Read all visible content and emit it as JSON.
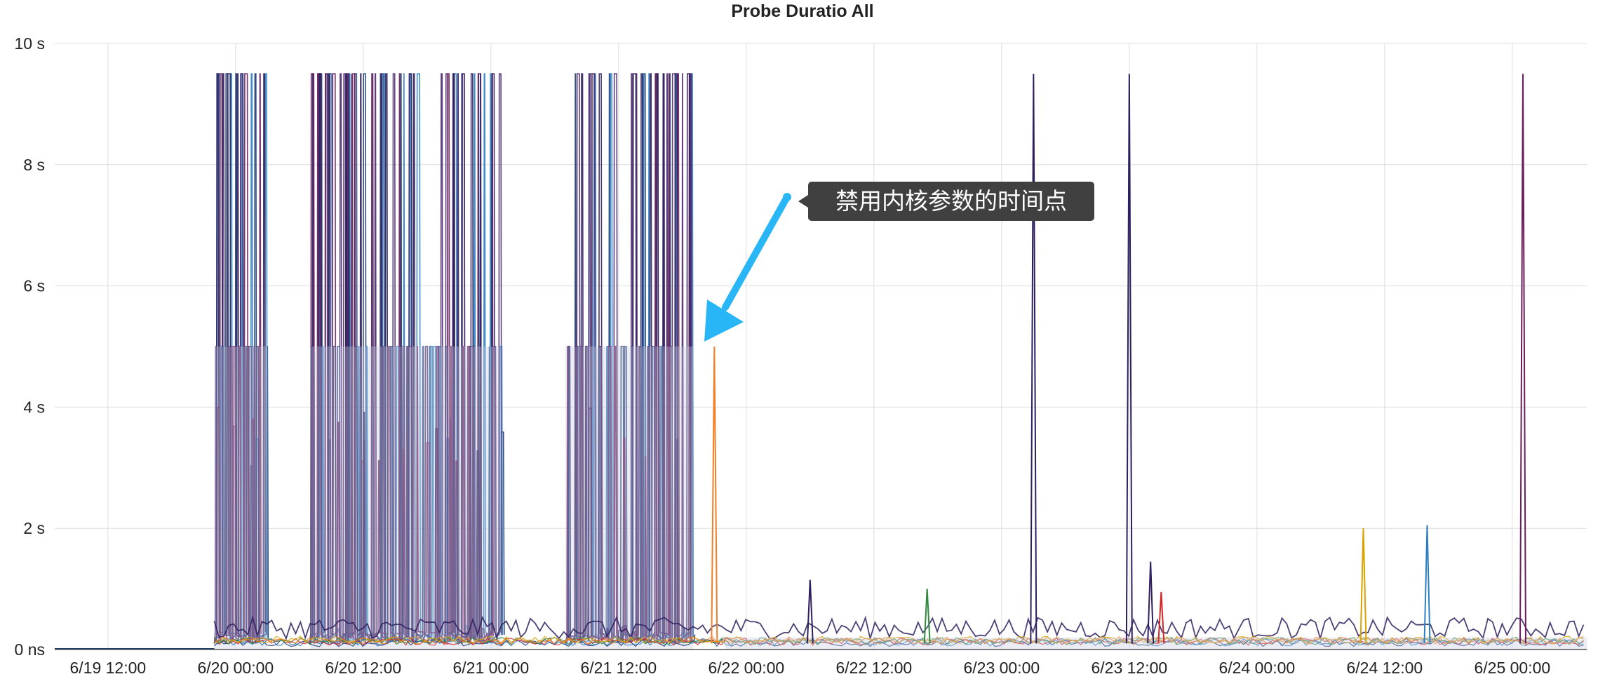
{
  "chart_data": {
    "type": "line",
    "title": "Probe Duratio All",
    "xlabel": "",
    "ylabel": "",
    "x_ticks": [
      "6/19 12:00",
      "6/20 00:00",
      "6/20 12:00",
      "6/21 00:00",
      "6/21 12:00",
      "6/22 00:00",
      "6/22 12:00",
      "6/23 00:00",
      "6/23 12:00",
      "6/24 00:00",
      "6/24 12:00",
      "6/25 00:00"
    ],
    "x_range": [
      "6/19 07:00",
      "6/25 07:00"
    ],
    "y_ticks": [
      "0 ns",
      "2 s",
      "4 s",
      "6 s",
      "8 s",
      "10 s"
    ],
    "ylim": [
      0,
      10
    ],
    "y_unit": "s",
    "grid": true,
    "legend": "none",
    "colors": [
      "#1f3b73",
      "#2d7fc1",
      "#4b2a6e",
      "#6a1f5c",
      "#2e1f5e",
      "#f07f29",
      "#2f8a3e",
      "#d62728",
      "#7f1d1d",
      "#d8a200",
      "#8a8fb5"
    ],
    "notable_spikes": [
      {
        "time": "6/23 03:00",
        "value": 9.5
      },
      {
        "time": "6/23 12:00",
        "value": 9.5
      },
      {
        "time": "6/23 14:00",
        "value": 1.45
      },
      {
        "time": "6/24 10:00",
        "value": 2.0
      },
      {
        "time": "6/24 16:00",
        "value": 2.05
      },
      {
        "time": "6/25 01:00",
        "value": 9.5
      },
      {
        "time": "6/21 21:00",
        "value": 5.0
      },
      {
        "time": "6/22 06:00",
        "value": 1.15
      },
      {
        "time": "6/22 17:00",
        "value": 1.0
      },
      {
        "time": "6/23 15:00",
        "value": 0.95
      }
    ],
    "storm_windows": [
      {
        "start": "6/19 22:00",
        "end": "6/20 03:00",
        "low": 0.1,
        "high": 9.5
      },
      {
        "start": "6/20 07:00",
        "end": "6/21 01:00",
        "low": 0.1,
        "high": 9.5
      },
      {
        "start": "6/21 07:00",
        "end": "6/21 19:00",
        "low": 0.1,
        "high": 9.5
      }
    ],
    "steady_state": {
      "start": "6/21 22:00",
      "end": "6/25 07:00",
      "low": 0.02,
      "high": 0.4
    }
  },
  "annotation": {
    "text": "禁用内核参数的时间点",
    "arrow_color": "#29b6f6",
    "box_color": "#404040"
  }
}
